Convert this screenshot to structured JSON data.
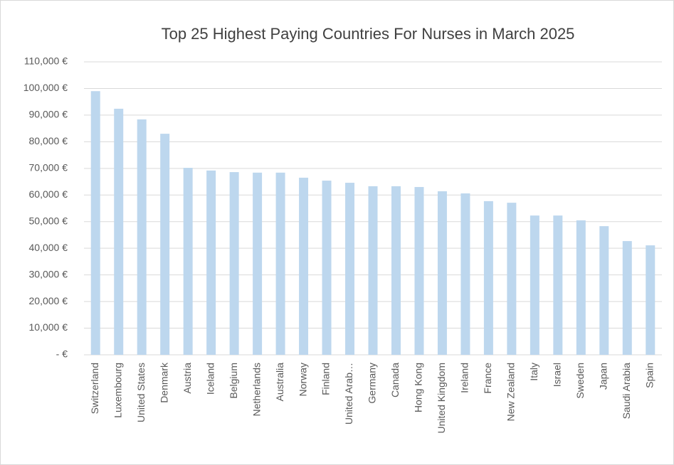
{
  "chart_data": {
    "type": "bar",
    "title": "Top 25 Highest Paying Countries For Nurses in March 2025",
    "categories": [
      "Switzerland",
      "Luxembourg",
      "United States",
      "Denmark",
      "Austria",
      "Iceland",
      "Belgium",
      "Netherlands",
      "Australia",
      "Norway",
      "Finland",
      "United Arab…",
      "Germany",
      "Canada",
      "Hong Kong",
      "United Kingdom",
      "Ireland",
      "France",
      "New Zealand",
      "Italy",
      "Israel",
      "Sweden",
      "Japan",
      "Saudi Arabia",
      "Spain"
    ],
    "values": [
      99000,
      92400,
      88400,
      83000,
      70200,
      69200,
      68600,
      68400,
      68400,
      66500,
      65400,
      64600,
      63300,
      63300,
      63000,
      61400,
      60600,
      57700,
      57100,
      52300,
      52300,
      50500,
      48300,
      42700,
      41100
    ],
    "color": "#bdd7ee",
    "ylim": [
      0,
      110000
    ],
    "yticks": [
      {
        "value": 0,
        "label": "-  €"
      },
      {
        "value": 10000,
        "label": "10,000 €"
      },
      {
        "value": 20000,
        "label": "20,000 €"
      },
      {
        "value": 30000,
        "label": "30,000 €"
      },
      {
        "value": 40000,
        "label": "40,000 €"
      },
      {
        "value": 50000,
        "label": "50,000 €"
      },
      {
        "value": 60000,
        "label": "60,000 €"
      },
      {
        "value": 70000,
        "label": "70,000 €"
      },
      {
        "value": 80000,
        "label": "80,000 €"
      },
      {
        "value": 90000,
        "label": "90,000 €"
      },
      {
        "value": 100000,
        "label": "100,000 €"
      },
      {
        "value": 110000,
        "label": "110,000 €"
      }
    ],
    "grid": true
  }
}
